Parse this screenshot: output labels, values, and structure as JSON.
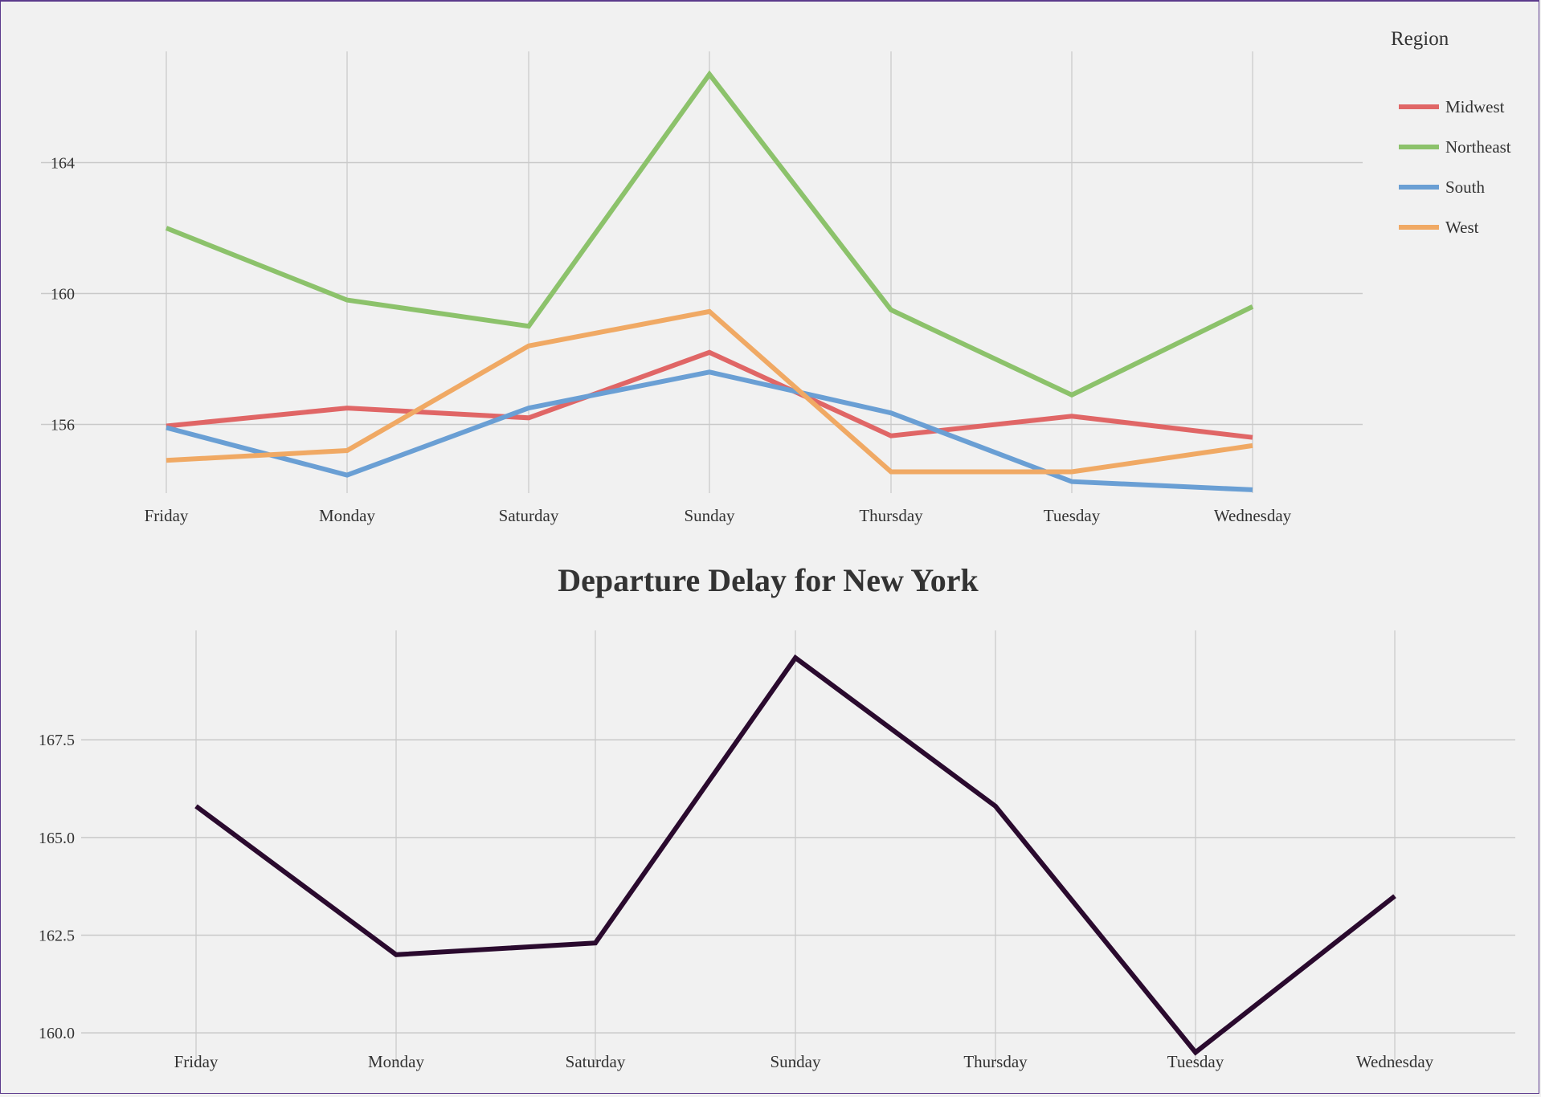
{
  "chart_data": [
    {
      "type": "line",
      "title": "",
      "xlabel": "",
      "ylabel": "",
      "categories": [
        "Friday",
        "Monday",
        "Saturday",
        "Sunday",
        "Thursday",
        "Tuesday",
        "Wednesday"
      ],
      "yticks": [
        "164",
        "160",
        "156"
      ],
      "ylim": [
        153.9,
        167.4
      ],
      "grid": true,
      "legend": {
        "title": "Region",
        "position": "top-right",
        "entries": [
          "Midwest",
          "Northeast",
          "South",
          "West"
        ]
      },
      "series": [
        {
          "name": "Midwest",
          "color": "#e06666",
          "values": [
            155.95,
            156.5,
            156.2,
            158.2,
            155.65,
            156.25,
            155.6
          ]
        },
        {
          "name": "Northeast",
          "color": "#8cc26b",
          "values": [
            162.0,
            159.8,
            159.0,
            166.7,
            159.5,
            156.9,
            159.6
          ]
        },
        {
          "name": "South",
          "color": "#6a9fd4",
          "values": [
            155.9,
            154.45,
            156.5,
            157.6,
            156.35,
            154.25,
            154.0
          ]
        },
        {
          "name": "West",
          "color": "#f0a964",
          "values": [
            154.9,
            155.2,
            158.4,
            159.45,
            154.55,
            154.55,
            155.35
          ]
        }
      ]
    },
    {
      "type": "line",
      "title": "Departure Delay for New York",
      "xlabel": "",
      "ylabel": "",
      "categories": [
        "Friday",
        "Monday",
        "Saturday",
        "Sunday",
        "Thursday",
        "Tuesday",
        "Wednesday"
      ],
      "yticks": [
        "167.5",
        "165.0",
        "162.5",
        "160.0"
      ],
      "ylim": [
        159.2,
        170.3
      ],
      "grid": true,
      "series": [
        {
          "name": "",
          "color": "#2a0a2e",
          "values": [
            165.8,
            162.0,
            162.3,
            169.6,
            165.8,
            159.5,
            163.5
          ]
        }
      ]
    }
  ]
}
